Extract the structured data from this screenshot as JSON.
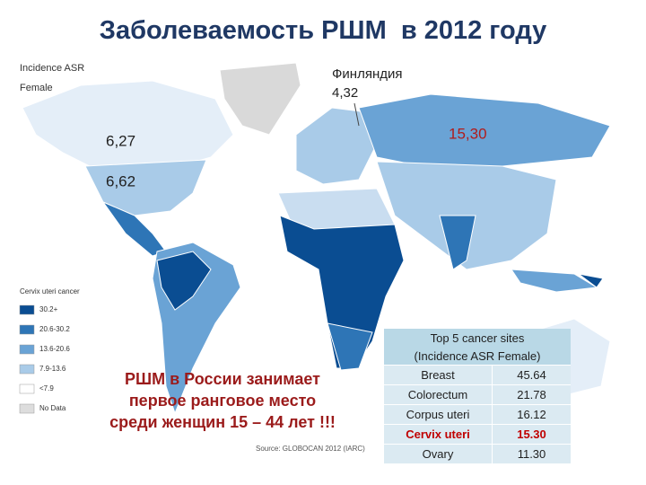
{
  "title": "Заболеваемость РШМ  в 2012 году",
  "map": {
    "header": [
      "Incidence ASR",
      "Female"
    ],
    "annotations": [
      {
        "lines": [
          "Финляндия",
          "4,32"
        ]
      },
      {
        "lines": [
          "15,30"
        ]
      },
      {
        "lines": [
          "6,27"
        ]
      },
      {
        "lines": [
          "6,62"
        ]
      }
    ],
    "legend": {
      "title": "Cervix uteri cancer",
      "items": [
        "30.2+",
        "20.6-30.2",
        "13.6-20.6",
        "7.9-13.6",
        "<7.9",
        "No Data"
      ]
    },
    "source": "Source: GLOBOCAN 2012 (IARC)"
  },
  "note": [
    "РШМ в России занимает",
    "первое ранговое место",
    "среди женщин 15 – 44 лет !!!"
  ],
  "table": {
    "title": "Top 5 cancer sites",
    "subtitle": "(Incidence ASR Female)",
    "rows": [
      [
        "Breast",
        "45.64"
      ],
      [
        "Colorectum",
        "21.78"
      ],
      [
        "Corpus uteri",
        "16.12"
      ],
      [
        "Cervix uteri",
        "15.30"
      ],
      [
        "Ovary",
        "11.30"
      ]
    ]
  }
}
